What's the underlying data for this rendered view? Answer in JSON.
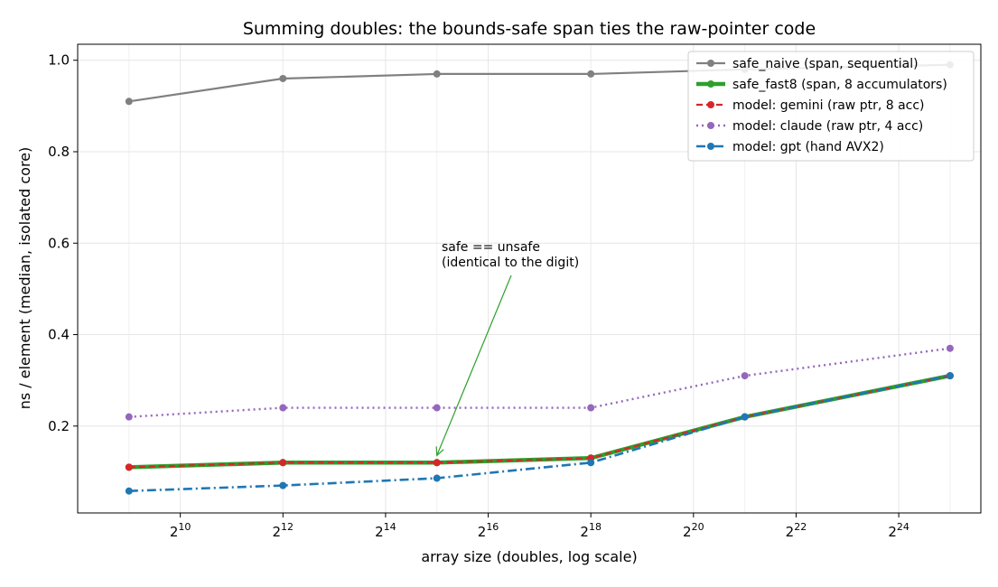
{
  "chart_data": {
    "type": "line",
    "title": "Summing doubles: the bounds-safe span ties the raw-pointer code",
    "xlabel": "array size (doubles, log scale)",
    "ylabel": "ns / element (median, isolated core)",
    "x_scale": "log2",
    "x_tick_exponents": [
      10,
      12,
      14,
      16,
      18,
      20,
      22,
      24
    ],
    "x_tick_base": "2",
    "y_ticks": [
      "0.2",
      "0.4",
      "0.6",
      "0.8",
      "1.0"
    ],
    "xlim_log2": [
      8.0,
      25.6
    ],
    "ylim": [
      0.01,
      1.035
    ],
    "grid": true,
    "legend_position": "top-right",
    "x_log2": [
      9,
      12,
      15,
      18,
      21,
      25
    ],
    "series": [
      {
        "name": "safe_naive (span, sequential)",
        "color": "#808080",
        "style": "solid",
        "values": [
          0.91,
          0.96,
          0.97,
          0.97,
          0.98,
          0.99
        ]
      },
      {
        "name": "safe_fast8 (span, 8 accumulators)",
        "color": "#2ca02c",
        "style": "solid-thick",
        "values": [
          0.11,
          0.12,
          0.12,
          0.13,
          0.22,
          0.31
        ]
      },
      {
        "name": "model: gemini (raw ptr, 8 acc)",
        "color": "#d62728",
        "style": "dashed",
        "values": [
          0.11,
          0.12,
          0.12,
          0.13,
          0.22,
          0.31
        ]
      },
      {
        "name": "model: claude (raw ptr, 4 acc)",
        "color": "#9467bd",
        "style": "dotted",
        "values": [
          0.22,
          0.24,
          0.24,
          0.24,
          0.31,
          0.37
        ]
      },
      {
        "name": "model: gpt (hand AVX2)",
        "color": "#1f77b4",
        "style": "dashdot",
        "values": [
          0.058,
          0.07,
          0.086,
          0.12,
          0.22,
          0.31
        ]
      }
    ],
    "annotation": {
      "lines": [
        "safe == unsafe",
        "(identical to the digit)"
      ],
      "color": "#2ca02c",
      "points_to_x_log2": 15,
      "points_to_y": 0.12
    }
  }
}
